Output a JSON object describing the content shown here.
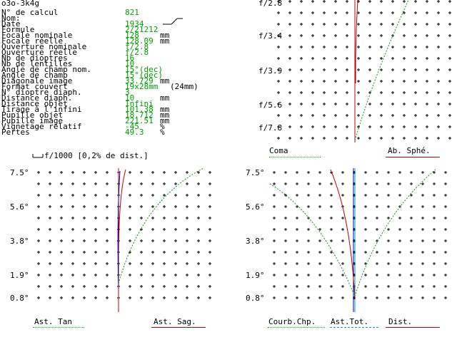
{
  "header": {
    "id": "o3o-3k4g"
  },
  "specs": [
    {
      "label": "N° de calcul",
      "value": "821",
      "unit": ""
    },
    {
      "label": "Nom:",
      "value": "",
      "unit": ""
    },
    {
      "label": "Date",
      "value": "1934",
      "unit": ""
    },
    {
      "label": "Formule",
      "value": "2/21212",
      "unit": ""
    },
    {
      "label": "Focale nominale",
      "value": "128",
      "unit": "mm"
    },
    {
      "label": "Focale réelle",
      "value": "128.09",
      "unit": "mm"
    },
    {
      "label": "Ouverture nominale",
      "value": "f/2.8",
      "unit": ""
    },
    {
      "label": "Ouverture réelle",
      "value": "f/2.8",
      "unit": ""
    },
    {
      "label": "Nb de dioptres",
      "value": "16",
      "unit": ""
    },
    {
      "label": "Nb de lentilles",
      "value": "10",
      "unit": ""
    },
    {
      "label": "Angle de champ nom.",
      "value": "15°(dec)",
      "unit": ""
    },
    {
      "label": "Angle de champ",
      "value": "15°(dec)",
      "unit": ""
    },
    {
      "label": "Diagonale image",
      "value": "33.729",
      "unit": "mm"
    },
    {
      "label": "Format couvert",
      "value": "19x28mm",
      "unit": "(24mm)"
    },
    {
      "label": "N° dioptre diaph.",
      "value": "3",
      "unit": ""
    },
    {
      "label": "Distance diaph.",
      "value": "10",
      "unit": "mm"
    },
    {
      "label": "Distance objet",
      "value": "Infini",
      "unit": ""
    },
    {
      "label": "Tirage à l'infini",
      "value": "101.38",
      "unit": "mm"
    },
    {
      "label": "Pupille objet",
      "value": "18.712",
      "unit": "mm"
    },
    {
      "label": "Pupille image",
      "value": "221.51",
      "unit": "mm"
    },
    {
      "label": "Vignetage relatif",
      "value": "-45",
      "unit": "%"
    },
    {
      "label": "Pertes",
      "value": "49.3",
      "unit": "%"
    }
  ],
  "sketch_icon": "formula-sketch-icon",
  "scale_note": "f/1000 [0,2% de dist.]",
  "panels": {
    "spherical": {
      "y_labels": [
        "f/2.8",
        "f/3.4",
        "f/3.9",
        "f/5.6",
        "f/7.8"
      ],
      "legend_left": "Coma",
      "legend_right": "Ab. Sphé."
    },
    "astig": {
      "y_labels": [
        "7.5°",
        "5.6°",
        "3.8°",
        "1.9°",
        "0.8°"
      ],
      "legend_left": "Ast. Tan",
      "legend_right": "Ast. Sag."
    },
    "field": {
      "y_labels": [
        "7.5°",
        "5.6°",
        "3.8°",
        "1.9°",
        "0.8°"
      ],
      "legend_left": "Courb.Chp.",
      "legend_mid": "Ast.Tot.",
      "legend_right": "Dist."
    }
  },
  "colors": {
    "red": "#c00000",
    "green": "#00a000",
    "blue": "#0000c0",
    "cyan": "#00a0c0"
  }
}
